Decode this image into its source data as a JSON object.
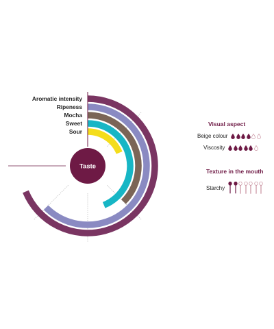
{
  "chart_data": {
    "type": "radial-bar",
    "title": "",
    "center_label": "Taste",
    "scale_max": 6,
    "axes": [
      "Aromatic intensity",
      "Ripeness",
      "Mocha",
      "Sweet",
      "Sour"
    ],
    "values": [
      5.5,
      5,
      3,
      3.5,
      1.5
    ],
    "colors": [
      "#7a3562",
      "#8a8ac2",
      "#7b6557",
      "#17b6c5",
      "#f4dd1b"
    ]
  },
  "side_panel": {
    "visual_title": "Visual aspect",
    "visual_items": [
      {
        "label": "Beige colour",
        "icon": "drop-icon",
        "filled": 4,
        "total": 6
      },
      {
        "label": "Viscosity",
        "icon": "drop-icon",
        "filled": 5,
        "total": 6
      }
    ],
    "texture_title": "Texture in the mouth",
    "texture_items": [
      {
        "label": "Starchy",
        "icon": "spoon-icon",
        "filled": 2,
        "total": 7
      }
    ],
    "accent_color": "#6e1a45",
    "empty_color": "#c8909f"
  }
}
